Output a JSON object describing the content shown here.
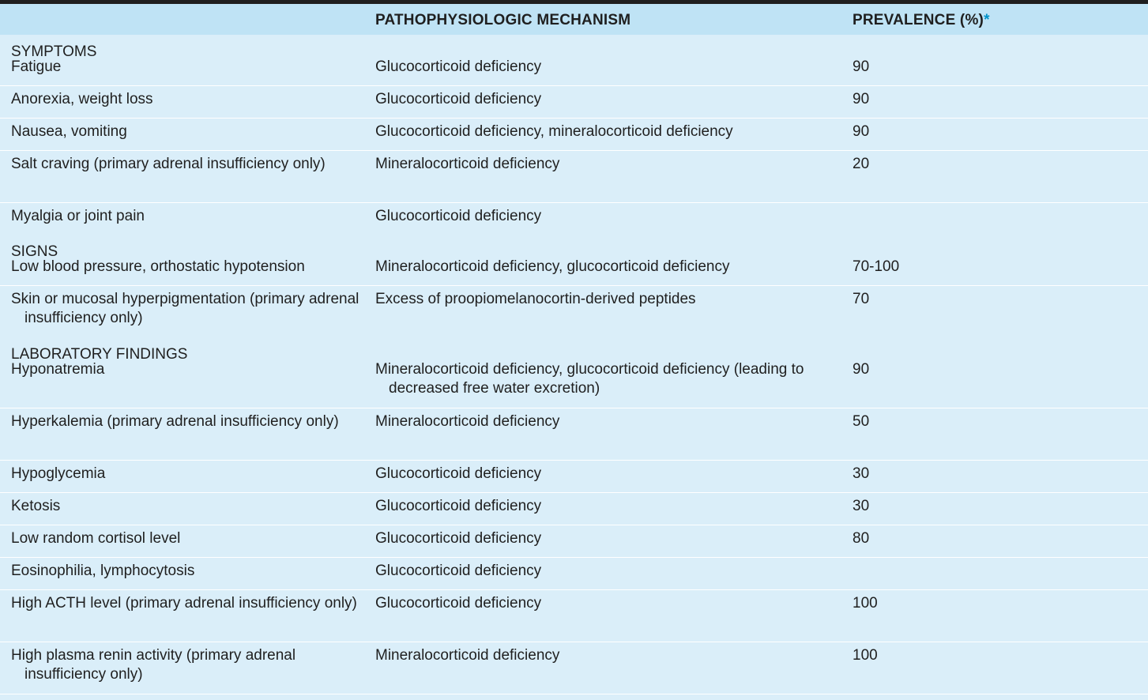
{
  "header": {
    "mechanism": "PATHOPHYSIOLOGIC MECHANISM",
    "prevalence": "PREVALENCE (%)",
    "prevalence_mark": "*"
  },
  "sections": [
    {
      "title": "SYMPTOMS",
      "rows": [
        {
          "feature": "Fatigue",
          "mechanism": "Glucocorticoid deficiency",
          "prevalence": "90"
        },
        {
          "feature": "Anorexia, weight loss",
          "mechanism": "Glucocorticoid deficiency",
          "prevalence": "90"
        },
        {
          "feature": "Nausea, vomiting",
          "mechanism": "Glucocorticoid deficiency, mineralocorticoid deficiency",
          "prevalence": "90"
        },
        {
          "feature": "Salt craving (primary adrenal insufficiency only)",
          "mechanism": "Mineralocorticoid deficiency",
          "prevalence": "20"
        },
        {
          "feature": "Myalgia or joint pain",
          "mechanism": "Glucocorticoid deficiency",
          "prevalence": ""
        }
      ]
    },
    {
      "title": "SIGNS",
      "rows": [
        {
          "feature": "Low blood pressure, orthostatic hypotension",
          "mechanism": "Mineralocorticoid deficiency, glucocorticoid deficiency",
          "prevalence": "70-100"
        },
        {
          "feature": "Skin or mucosal hyperpigmentation (primary adrenal insufficiency only)",
          "mechanism": "Excess of proopiomelanocortin-derived peptides",
          "prevalence": "70"
        }
      ]
    },
    {
      "title": "LABORATORY FINDINGS",
      "rows": [
        {
          "feature": "Hyponatremia",
          "mechanism": "Mineralocorticoid deficiency, glucocorticoid deficiency (leading to decreased free water excretion)",
          "prevalence": "90"
        },
        {
          "feature": "Hyperkalemia (primary adrenal insufficiency only)",
          "mechanism": "Mineralocorticoid deficiency",
          "prevalence": "50"
        },
        {
          "feature": "Hypoglycemia",
          "mechanism": "Glucocorticoid deficiency",
          "prevalence": "30"
        },
        {
          "feature": "Ketosis",
          "mechanism": "Glucocorticoid deficiency",
          "prevalence": "30"
        },
        {
          "feature": "Low random cortisol level",
          "mechanism": "Glucocorticoid deficiency",
          "prevalence": "80"
        },
        {
          "feature": "Eosinophilia, lymphocytosis",
          "mechanism": "Glucocorticoid deficiency",
          "prevalence": ""
        },
        {
          "feature": "High ACTH level (primary adrenal insufficiency only)",
          "mechanism": "Glucocorticoid deficiency",
          "prevalence": "100"
        },
        {
          "feature": "High plasma renin activity (primary adrenal insufficiency only)",
          "mechanism": "Mineralocorticoid deficiency",
          "prevalence": "100"
        }
      ]
    }
  ],
  "colors": {
    "header_bg": "#bfe3f5",
    "body_bg": "#daeef9",
    "asterisk": "#0093c9"
  }
}
